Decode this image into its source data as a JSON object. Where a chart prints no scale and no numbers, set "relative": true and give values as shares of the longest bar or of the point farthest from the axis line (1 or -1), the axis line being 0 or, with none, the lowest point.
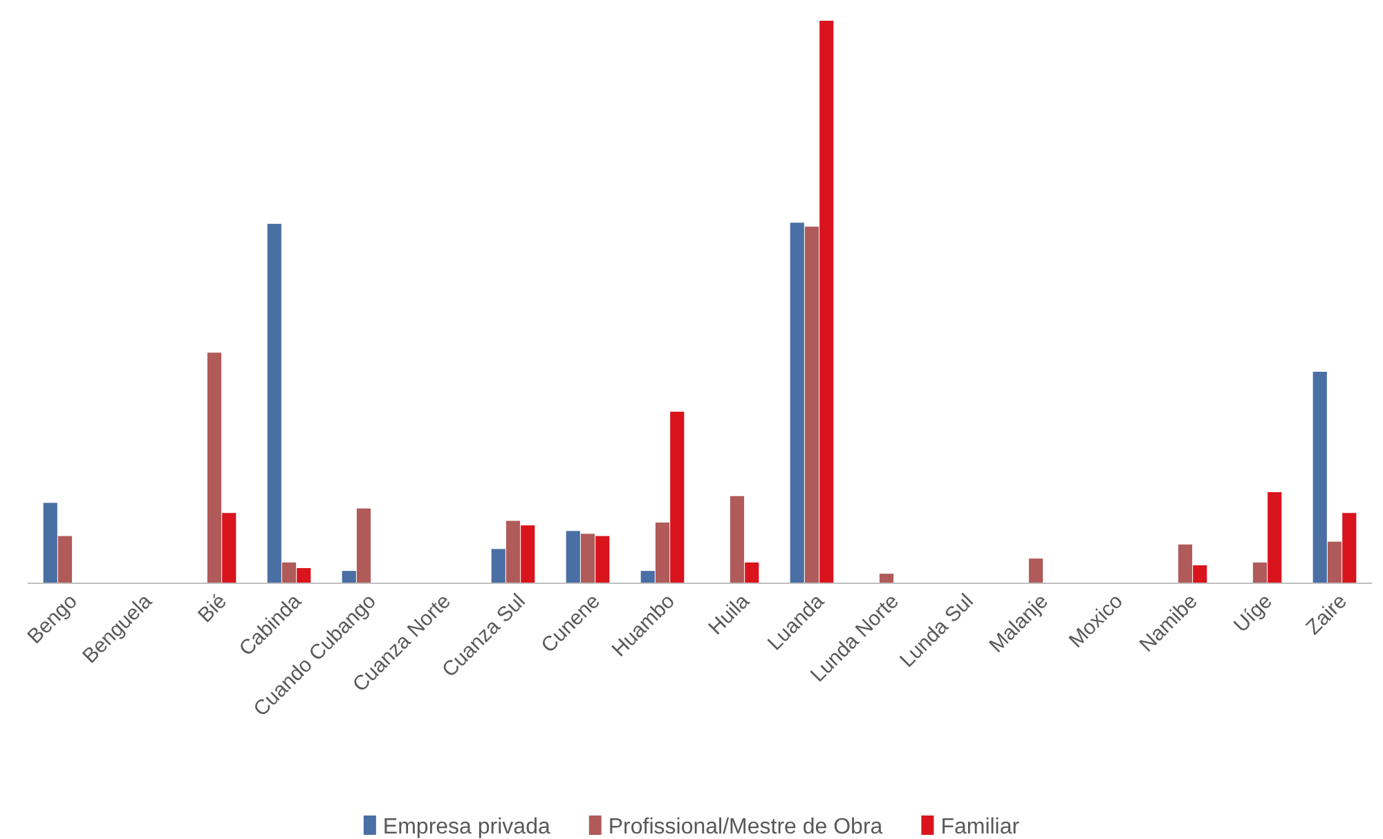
{
  "chart_data": {
    "type": "bar",
    "relative": true,
    "categories": [
      "Bengo",
      "Benguela",
      "Bié",
      "Cabinda",
      "Cuando Cubango",
      "Cuanza Norte",
      "Cuanza Sul",
      "Cunene",
      "Huambo",
      "Huila",
      "Luanda",
      "Lunda Norte",
      "Lunda Sul",
      "Malanje",
      "Moxico",
      "Namibe",
      "Uíge",
      "Zaire"
    ],
    "series": [
      {
        "name": "Empresa privada",
        "color": "#4a6fa5",
        "values": [
          0.143,
          null,
          null,
          0.639,
          0.022,
          null,
          0.061,
          0.093,
          0.022,
          null,
          0.641,
          null,
          null,
          null,
          null,
          null,
          null,
          0.376
        ]
      },
      {
        "name": "Profissional/Mestre de Obra",
        "color": "#b05a5a",
        "values": [
          0.084,
          null,
          0.41,
          0.037,
          0.133,
          null,
          0.111,
          0.088,
          0.108,
          0.155,
          0.634,
          0.017,
          null,
          0.044,
          null,
          0.069,
          0.037,
          0.074
        ]
      },
      {
        "name": "Familiar",
        "color": "#d9141d",
        "values": [
          null,
          null,
          0.125,
          0.027,
          null,
          null,
          0.103,
          0.084,
          0.305,
          0.037,
          1,
          null,
          null,
          null,
          null,
          0.032,
          0.162,
          0.125
        ]
      }
    ],
    "legend": "bottom"
  }
}
